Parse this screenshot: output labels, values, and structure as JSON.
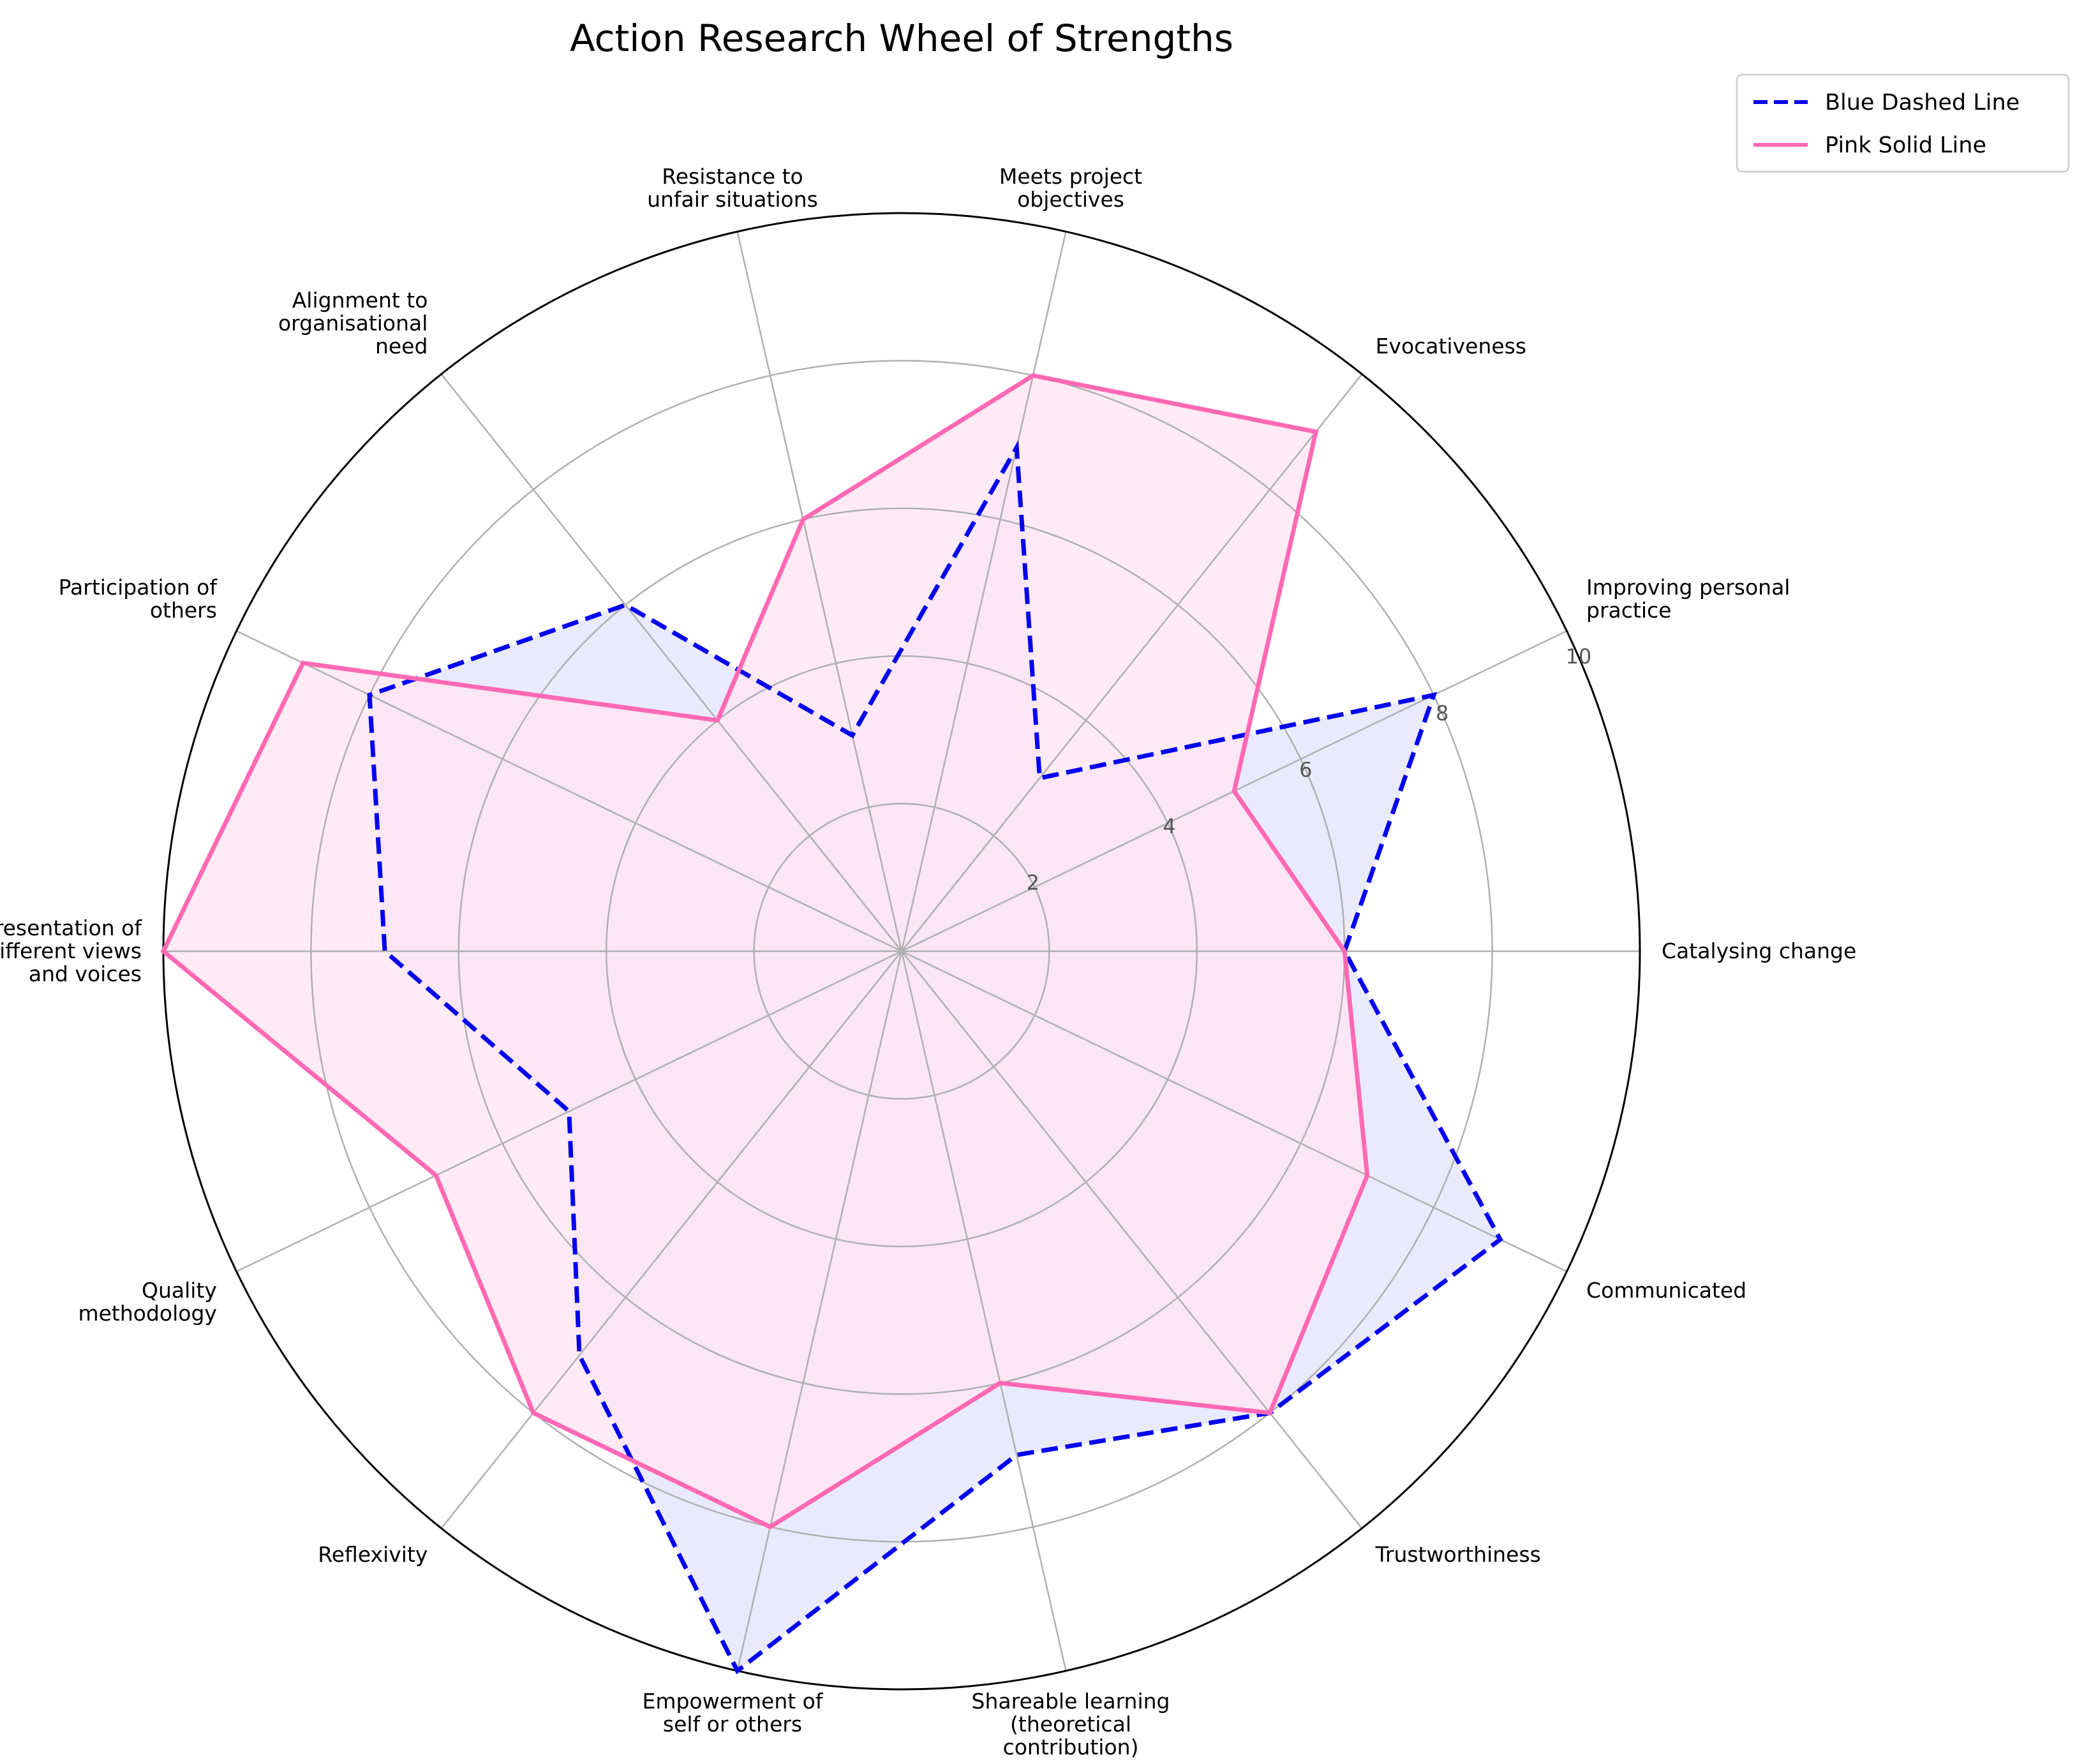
{
  "chart_data": {
    "type": "radar",
    "title": "Action Research Wheel of Strengths",
    "categories": [
      "Catalysing change",
      "Improving personal\npractice",
      "Evocativeness",
      "Meets project\nobjectives",
      "Resistance to\nunfair situations",
      "Alignment to\norganisational\nneed",
      "Participation of\nothers",
      "Representation of\ndifferent views\nand voices",
      "Quality\nmethodology",
      "Reflexivity",
      "Empowerment of\nself or others",
      "Shareable learning\n(theoretical\ncontribution)",
      "Trustworthiness",
      "Communicated"
    ],
    "radial_ticks": [
      2,
      4,
      6,
      8,
      10
    ],
    "rlim": [
      0,
      10
    ],
    "grid": true,
    "legend_position": "top-right, outside plot",
    "series": [
      {
        "name": "Blue Dashed Line",
        "color": "#0000ee",
        "fill": "#e3e3fc",
        "style": "dashed",
        "values": [
          6,
          8,
          3,
          7,
          3,
          6,
          8,
          7,
          5,
          7,
          10,
          7,
          8,
          9
        ]
      },
      {
        "name": "Pink Solid Line",
        "color": "#ff69b4",
        "fill": "#ffe4f2",
        "style": "solid",
        "values": [
          6,
          5,
          9,
          8,
          6,
          4,
          9,
          10,
          7,
          8,
          8,
          6,
          8,
          7
        ]
      }
    ]
  }
}
